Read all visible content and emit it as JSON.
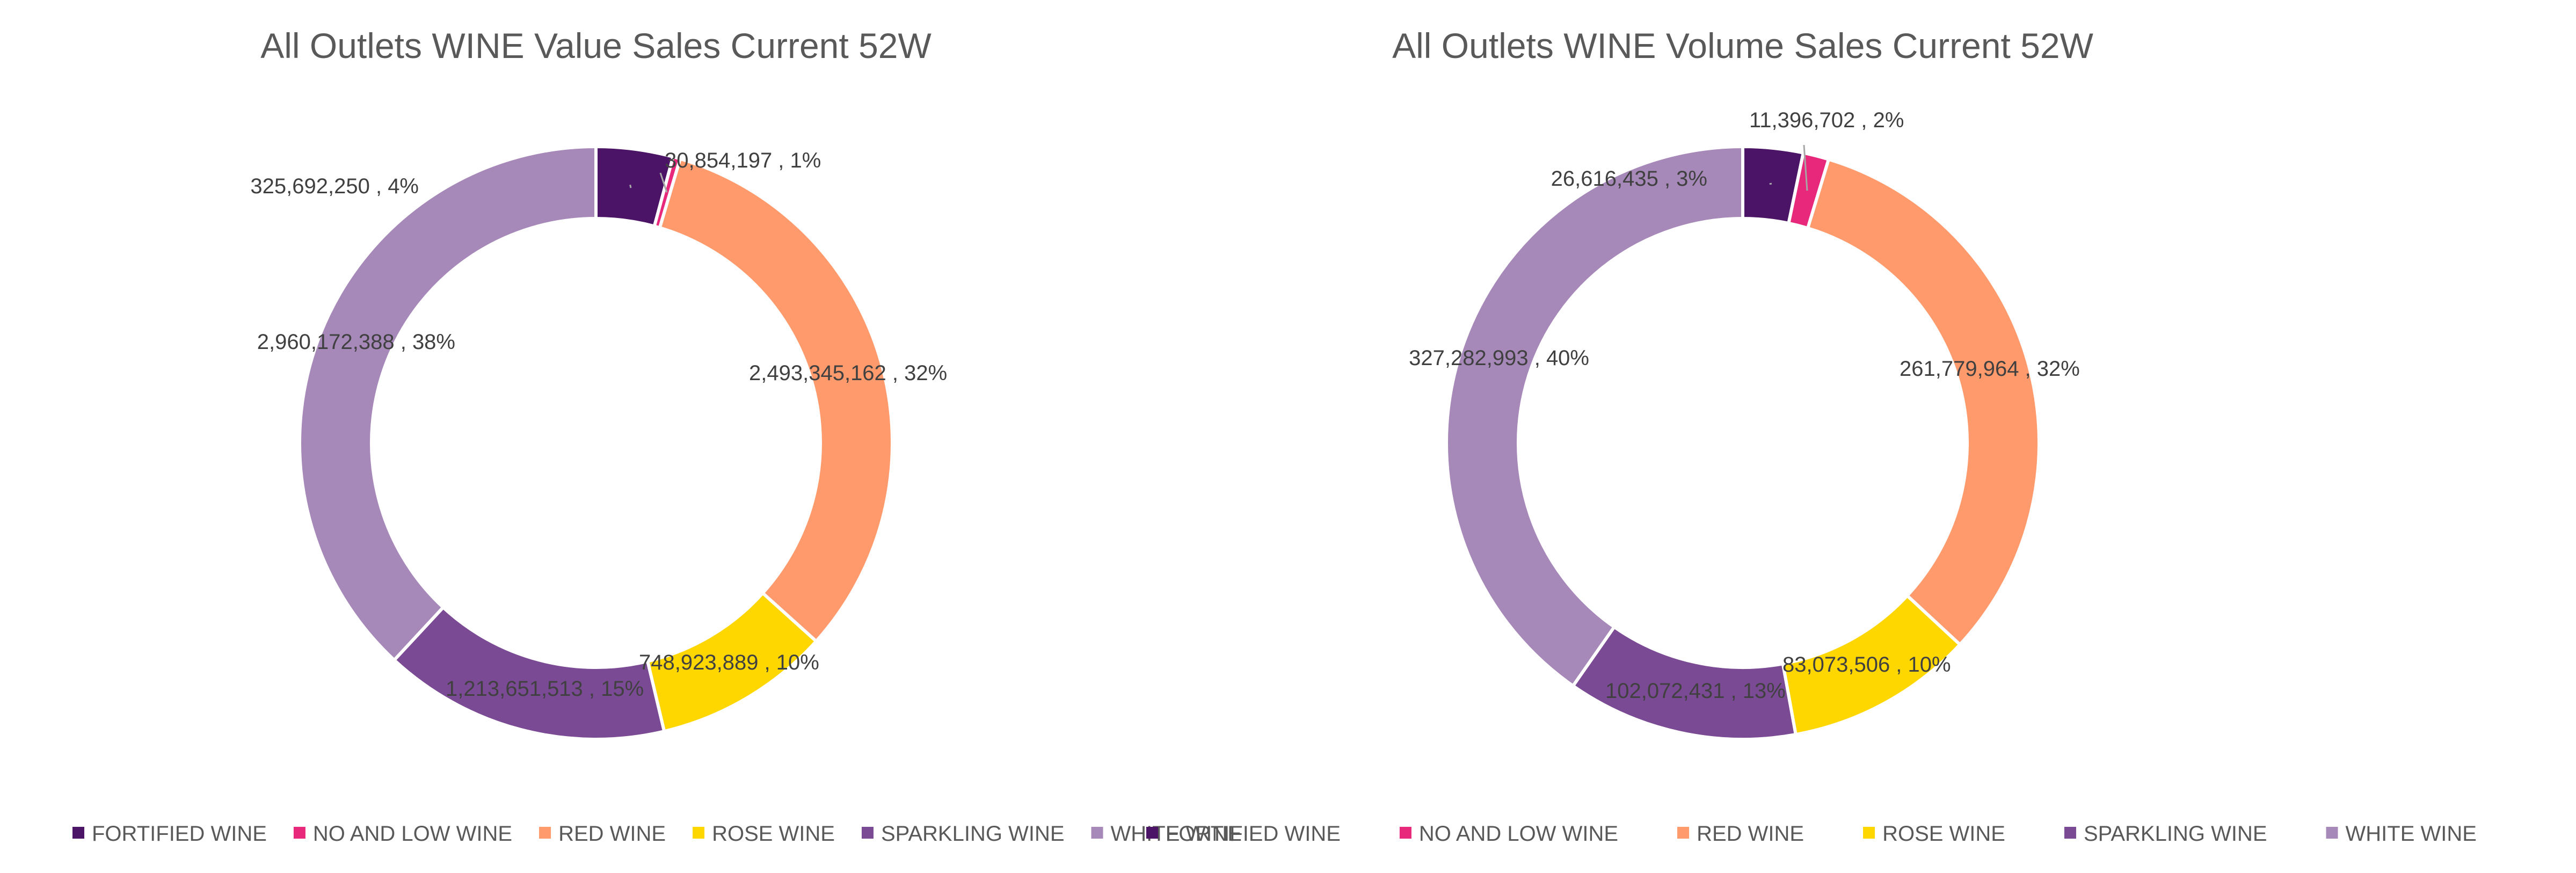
{
  "chart_data": [
    {
      "type": "pie",
      "title": "All Outlets WINE Value Sales Current  52W",
      "categories": [
        "FORTIFIED WINE",
        "NO AND LOW WINE",
        "RED WINE",
        "ROSE WINE",
        "SPARKLING WINE",
        "WHITE WINE"
      ],
      "values": [
        325692250,
        30854197,
        2493345162,
        748923889,
        1213651513,
        2960172388
      ],
      "labels": [
        "325,692,250 , 4%",
        "30,854,197 , 1%",
        "2,493,345,162 , 32%",
        "748,923,889 , 10%",
        "1,213,651,513 , 15%",
        "2,960,172,388 , 38%"
      ],
      "colors": [
        "#4B1466",
        "#E8287A",
        "#FF9A6C",
        "#FFD700",
        "#7B4A94",
        "#A689B9"
      ],
      "legend": "bottom"
    },
    {
      "type": "pie",
      "title": "All Outlets WINE Volume Sales Current  52W",
      "categories": [
        "FORTIFIED WINE",
        "NO AND LOW WINE",
        "RED WINE",
        "ROSE WINE",
        "SPARKLING WINE",
        "WHITE WINE"
      ],
      "values": [
        26616435,
        11396702,
        261779964,
        83073506,
        102072431,
        327282993
      ],
      "labels": [
        "26,616,435 , 3%",
        "11,396,702 , 2%",
        "261,779,964 , 32%",
        "83,073,506 , 10%",
        "102,072,431 , 13%",
        "327,282,993 , 40%"
      ],
      "colors": [
        "#4B1466",
        "#E8287A",
        "#FF9A6C",
        "#FFD700",
        "#7B4A94",
        "#A689B9"
      ],
      "legend": "bottom"
    }
  ]
}
